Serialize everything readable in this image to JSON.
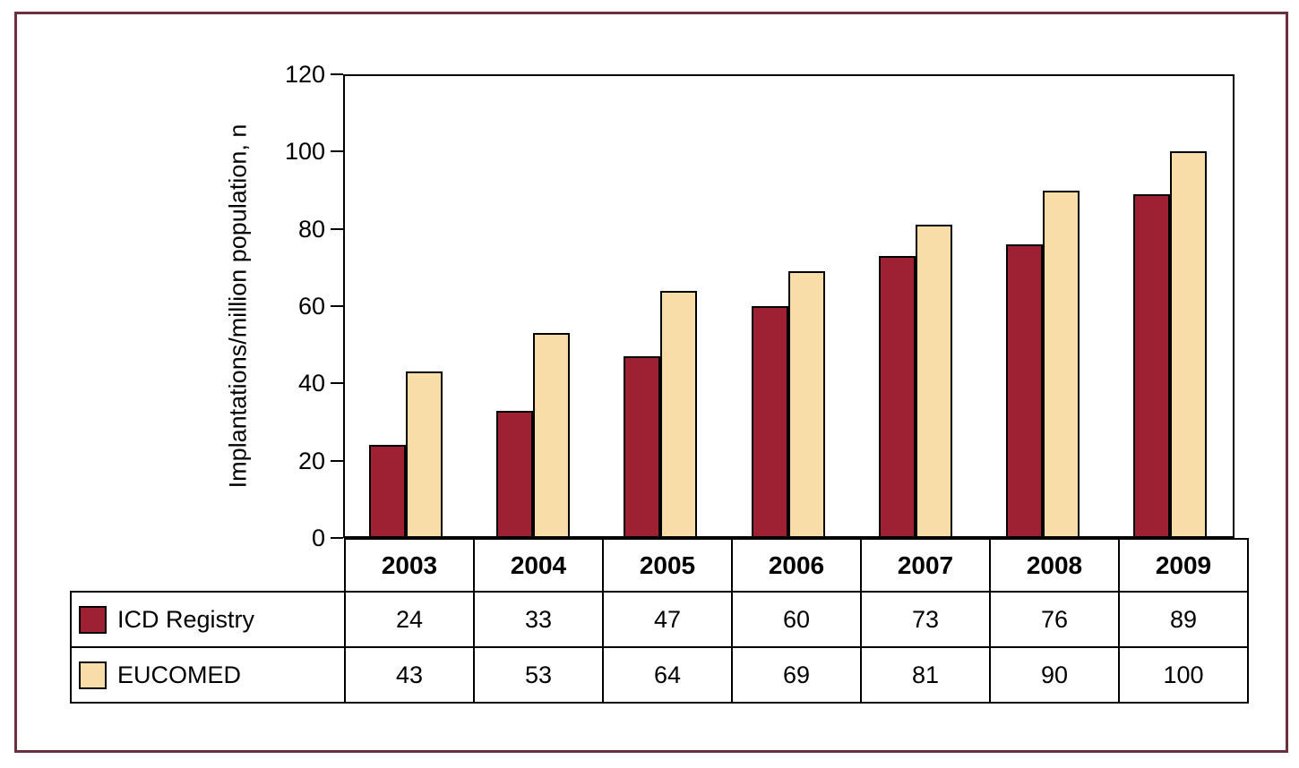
{
  "figure": {
    "frame_color": "#6a3040",
    "background": "#ffffff"
  },
  "chart_data": {
    "type": "bar",
    "ylabel": "Implantations/million population, n",
    "categories": [
      "2003",
      "2004",
      "2005",
      "2006",
      "2007",
      "2008",
      "2009"
    ],
    "series": [
      {
        "name": "ICD Registry",
        "color": "#9e2033",
        "values": [
          24,
          33,
          47,
          60,
          73,
          76,
          89
        ]
      },
      {
        "name": "EUCOMED",
        "color": "#f9dda9",
        "values": [
          43,
          53,
          64,
          69,
          81,
          90,
          100
        ]
      }
    ],
    "ylim": [
      0,
      120
    ],
    "yticks": [
      0,
      20,
      40,
      60,
      80,
      100,
      120
    ],
    "grid": false,
    "bar_outline_color": "#000000",
    "legend_position": "table-below-left"
  }
}
